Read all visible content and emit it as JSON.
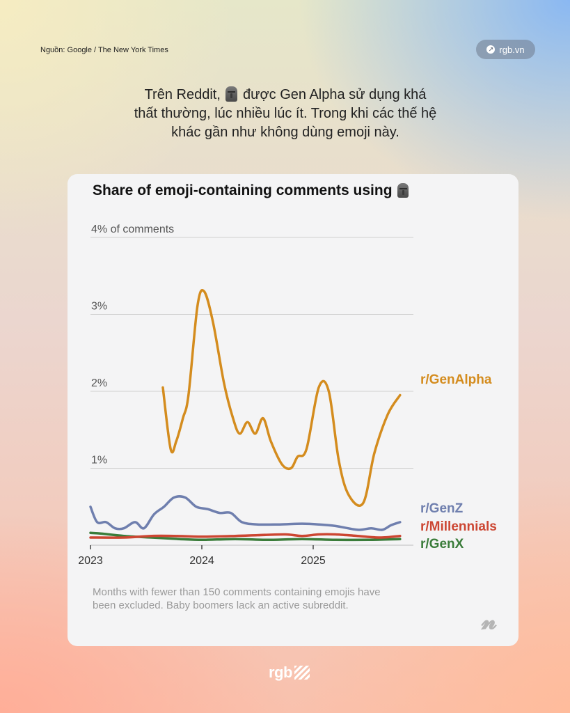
{
  "source": "Nguồn: Google / The New York Times",
  "brand": {
    "pill_label": "rgb.vn",
    "pill_icon": "arrow-link-icon",
    "footer_logo": "rgb"
  },
  "headline": {
    "part1": "Trên Reddit,",
    "part2": "được Gen Alpha sử dụng khá",
    "line2": "thất thường, lúc nhiều lúc ít. Trong khi các thế hệ",
    "line3": "khác gần như không dùng emoji này.",
    "emoji_icon": "moai-emoji-icon"
  },
  "chart_data": {
    "type": "line",
    "title": "Share of emoji-containing comments using",
    "title_emoji": "moai-emoji-icon",
    "y_ticks": [
      {
        "value": 4,
        "label": "4% of comments"
      },
      {
        "value": 3,
        "label": "3%"
      },
      {
        "value": 2,
        "label": "2%"
      },
      {
        "value": 1,
        "label": "1%"
      }
    ],
    "x_ticks": [
      {
        "value": 2023.0,
        "label": "2023"
      },
      {
        "value": 2024.0,
        "label": "2024"
      },
      {
        "value": 2025.0,
        "label": "2025"
      }
    ],
    "xlim": [
      2023.0,
      2025.9
    ],
    "ylim": [
      0,
      4
    ],
    "grid": true,
    "series": [
      {
        "name": "r/GenAlpha",
        "color": "#d48c1e",
        "points": [
          [
            2023.65,
            2.05
          ],
          [
            2023.72,
            1.25
          ],
          [
            2023.77,
            1.35
          ],
          [
            2023.83,
            1.65
          ],
          [
            2023.88,
            1.95
          ],
          [
            2023.96,
            3.1
          ],
          [
            2024.02,
            3.3
          ],
          [
            2024.1,
            2.9
          ],
          [
            2024.2,
            2.1
          ],
          [
            2024.28,
            1.65
          ],
          [
            2024.34,
            1.45
          ],
          [
            2024.41,
            1.6
          ],
          [
            2024.48,
            1.45
          ],
          [
            2024.55,
            1.65
          ],
          [
            2024.62,
            1.35
          ],
          [
            2024.72,
            1.05
          ],
          [
            2024.8,
            1.0
          ],
          [
            2024.86,
            1.15
          ],
          [
            2024.94,
            1.25
          ],
          [
            2025.05,
            2.05
          ],
          [
            2025.14,
            2.0
          ],
          [
            2025.23,
            1.1
          ],
          [
            2025.32,
            0.65
          ],
          [
            2025.45,
            0.55
          ],
          [
            2025.55,
            1.2
          ],
          [
            2025.67,
            1.7
          ],
          [
            2025.78,
            1.95
          ]
        ]
      },
      {
        "name": "r/GenZ",
        "color": "#6f7fae",
        "points": [
          [
            2023.0,
            0.5
          ],
          [
            2023.06,
            0.3
          ],
          [
            2023.14,
            0.3
          ],
          [
            2023.22,
            0.22
          ],
          [
            2023.3,
            0.22
          ],
          [
            2023.4,
            0.3
          ],
          [
            2023.48,
            0.22
          ],
          [
            2023.57,
            0.4
          ],
          [
            2023.66,
            0.5
          ],
          [
            2023.75,
            0.62
          ],
          [
            2023.85,
            0.62
          ],
          [
            2023.95,
            0.5
          ],
          [
            2024.05,
            0.47
          ],
          [
            2024.16,
            0.42
          ],
          [
            2024.26,
            0.42
          ],
          [
            2024.36,
            0.3
          ],
          [
            2024.5,
            0.27
          ],
          [
            2024.7,
            0.27
          ],
          [
            2024.9,
            0.28
          ],
          [
            2025.05,
            0.27
          ],
          [
            2025.2,
            0.25
          ],
          [
            2025.4,
            0.2
          ],
          [
            2025.52,
            0.22
          ],
          [
            2025.62,
            0.2
          ],
          [
            2025.7,
            0.26
          ],
          [
            2025.78,
            0.3
          ]
        ]
      },
      {
        "name": "r/Millennials",
        "color": "#cc4632",
        "points": [
          [
            2023.0,
            0.1
          ],
          [
            2023.3,
            0.1
          ],
          [
            2023.55,
            0.12
          ],
          [
            2023.75,
            0.12
          ],
          [
            2024.0,
            0.11
          ],
          [
            2024.3,
            0.12
          ],
          [
            2024.5,
            0.13
          ],
          [
            2024.75,
            0.14
          ],
          [
            2024.9,
            0.12
          ],
          [
            2025.05,
            0.14
          ],
          [
            2025.2,
            0.14
          ],
          [
            2025.4,
            0.12
          ],
          [
            2025.6,
            0.1
          ],
          [
            2025.78,
            0.12
          ]
        ]
      },
      {
        "name": "r/GenX",
        "color": "#3a7c3a",
        "points": [
          [
            2023.0,
            0.16
          ],
          [
            2023.1,
            0.15
          ],
          [
            2023.3,
            0.12
          ],
          [
            2023.55,
            0.1
          ],
          [
            2023.8,
            0.08
          ],
          [
            2024.0,
            0.07
          ],
          [
            2024.3,
            0.08
          ],
          [
            2024.6,
            0.07
          ],
          [
            2024.9,
            0.08
          ],
          [
            2025.2,
            0.07
          ],
          [
            2025.5,
            0.07
          ],
          [
            2025.78,
            0.08
          ]
        ]
      }
    ],
    "series_labels": [
      "r/GenAlpha",
      "r/GenZ",
      "r/Millennials",
      "r/GenX"
    ]
  },
  "footnote": "Months with fewer than 150 comments containing emojis have been excluded. Baby boomers lack an active subreddit.",
  "publisher_logo": "nyt-logo-icon"
}
